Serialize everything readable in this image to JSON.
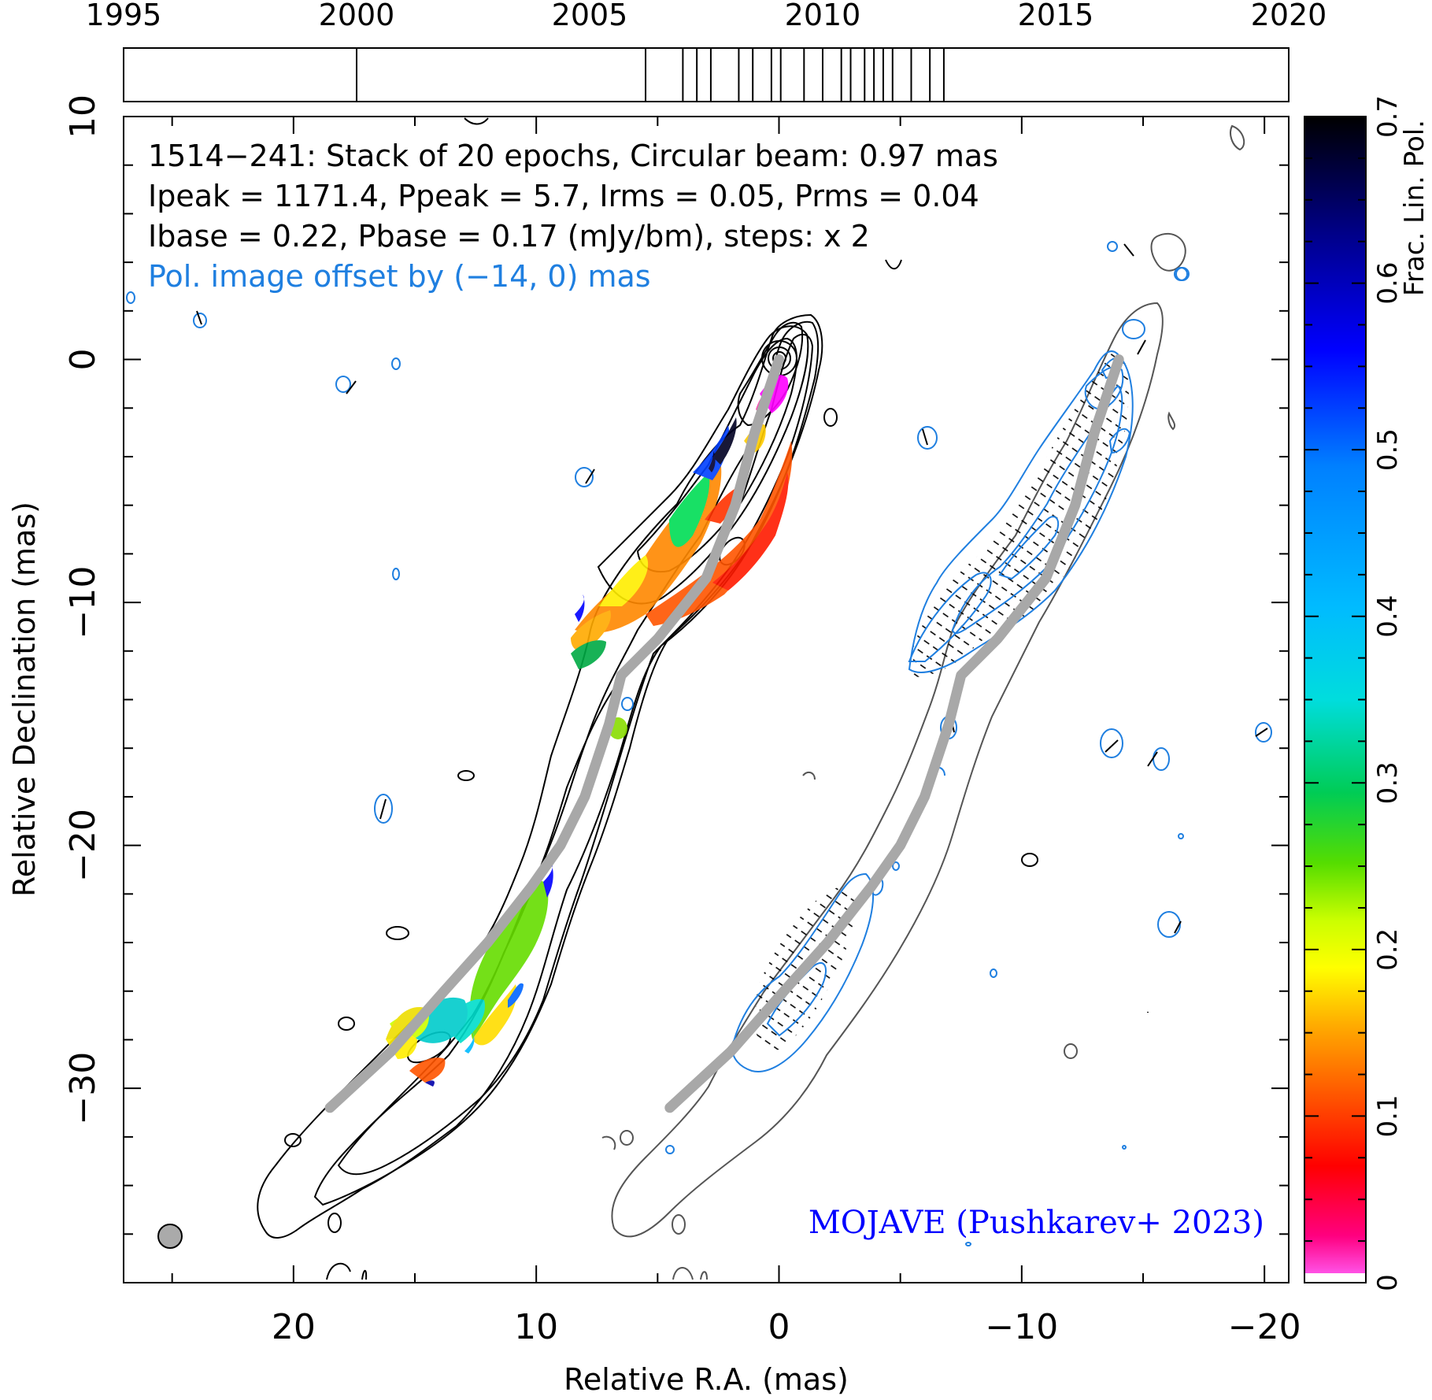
{
  "chart_data": {
    "type": "contour_map",
    "source": "1514−241",
    "header_lines": [
      "1514−241: Stack of 20 epochs, Circular beam: 0.97 mas",
      "Ipeak = 1171.4, Ppeak = 5.7, Irms = 0.05, Prms = 0.04",
      "Ibase = 0.22, Pbase = 0.17 (mJy/bm), steps: x 2"
    ],
    "offset_note": "Pol. image offset by (−14, 0) mas",
    "credit": "MOJAVE (Pushkarev+ 2023)",
    "xlabel": "Relative R.A. (mas)",
    "ylabel": "Relative Declination (mas)",
    "colorbar_label": "Frac. Lin. Pol.",
    "xlim": [
      27,
      -21
    ],
    "ylim": [
      -38,
      10
    ],
    "xticks": [
      20,
      10,
      0,
      -10,
      -20
    ],
    "xtick_labels": [
      "20",
      "10",
      "0",
      "−10",
      "−20"
    ],
    "yticks": [
      10,
      0,
      -10,
      -20,
      -30
    ],
    "ytick_labels": [
      "10",
      "0",
      "−10",
      "−20",
      "−30"
    ],
    "colorbar_range": [
      0,
      0.7
    ],
    "colorbar_ticks": [
      0,
      0.1,
      0.2,
      0.3,
      0.4,
      0.5,
      0.6,
      0.7
    ],
    "colorbar_tick_labels": [
      "0",
      "0.1",
      "0.2",
      "0.3",
      "0.4",
      "0.5",
      "0.6",
      "0.7"
    ],
    "timeline": {
      "range": [
        1995,
        2020
      ],
      "tick_labels": [
        "1995",
        "2000",
        "2005",
        "2010",
        "2015",
        "2020"
      ],
      "epochs": [
        2000.0,
        2006.2,
        2007.0,
        2007.3,
        2007.6,
        2008.2,
        2008.5,
        2008.9,
        2009.1,
        2009.6,
        2010.0,
        2010.4,
        2010.6,
        2010.9,
        2011.1,
        2011.3,
        2011.5,
        2011.9,
        2012.3,
        2012.6
      ]
    },
    "beam_diameter_mas": 0.97,
    "ridge_line": [
      {
        "x": 0,
        "y": 0
      },
      {
        "x": 1,
        "y": -3
      },
      {
        "x": 1.8,
        "y": -6
      },
      {
        "x": 3,
        "y": -9
      },
      {
        "x": 5,
        "y": -11.5
      },
      {
        "x": 6.5,
        "y": -13
      },
      {
        "x": 7,
        "y": -15
      },
      {
        "x": 8,
        "y": -18
      },
      {
        "x": 9,
        "y": -20
      },
      {
        "x": 10.2,
        "y": -21.7
      },
      {
        "x": 12,
        "y": -24
      },
      {
        "x": 13.8,
        "y": -26
      },
      {
        "x": 16,
        "y": -28.5
      },
      {
        "x": 18.5,
        "y": -30.8
      }
    ]
  }
}
